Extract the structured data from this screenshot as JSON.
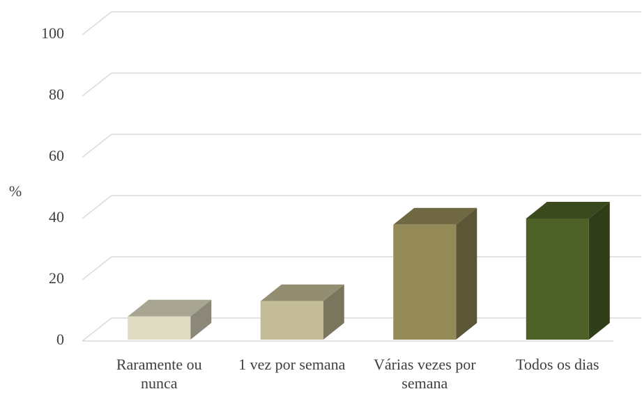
{
  "chart_data": {
    "type": "bar3d",
    "ylabel": "%",
    "categories": [
      "Raramente ou nunca",
      "1 vez por semana",
      "Várias vezes por semana",
      "Todos os dias"
    ],
    "values": [
      8,
      13,
      38,
      40
    ],
    "colors": [
      "#e0dcc4",
      "#c4bc96",
      "#948a58",
      "#4e6228"
    ],
    "ylim": [
      0,
      100
    ],
    "yticks": [
      0,
      20,
      40,
      60,
      80,
      100
    ],
    "grid": true
  }
}
